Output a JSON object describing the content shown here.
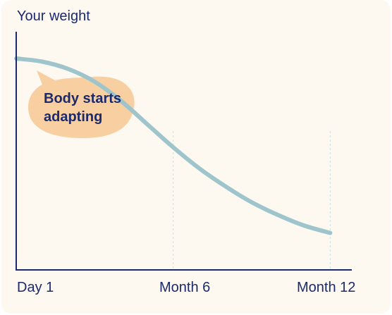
{
  "chart_data": {
    "type": "line",
    "title": "",
    "ylabel": "Your weight",
    "xlabel": "",
    "x_ticks": [
      "Day 1",
      "Month 6",
      "Month 12"
    ],
    "x_tick_months": [
      0,
      6,
      12
    ],
    "xlim": [
      0,
      12.8
    ],
    "ylim": [
      0,
      100
    ],
    "grid": "vertical dashed at Month 6 and Month 12",
    "series": [
      {
        "color": "#9ec4cc",
        "points": [
          {
            "x": 0,
            "y": 100
          },
          {
            "x": 1,
            "y": 98.5
          },
          {
            "x": 2,
            "y": 95
          },
          {
            "x": 3,
            "y": 89
          },
          {
            "x": 4,
            "y": 80
          },
          {
            "x": 5,
            "y": 69
          },
          {
            "x": 6,
            "y": 58
          },
          {
            "x": 7,
            "y": 48
          },
          {
            "x": 8,
            "y": 39.5
          },
          {
            "x": 9,
            "y": 32
          },
          {
            "x": 10,
            "y": 26
          },
          {
            "x": 11,
            "y": 21
          },
          {
            "x": 12,
            "y": 17.5
          }
        ]
      }
    ],
    "annotation": {
      "text_lines": [
        "Body starts",
        "adapting"
      ],
      "color": "#f8cfa0"
    }
  },
  "colors": {
    "background": "#fdf8f0",
    "axis": "#1a2a6c",
    "text": "#1a2a6c",
    "line": "#9ec4cc",
    "callout": "#f8cfa0",
    "grid": "#cde0e3"
  }
}
